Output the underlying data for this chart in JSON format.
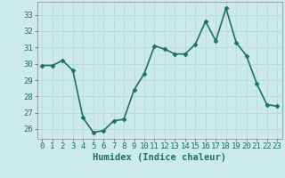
{
  "x": [
    0,
    1,
    2,
    3,
    4,
    5,
    6,
    7,
    8,
    9,
    10,
    11,
    12,
    13,
    14,
    15,
    16,
    17,
    18,
    19,
    20,
    21,
    22,
    23
  ],
  "y": [
    29.9,
    29.9,
    30.2,
    29.6,
    26.7,
    25.8,
    25.9,
    26.5,
    26.6,
    28.4,
    29.4,
    31.1,
    30.9,
    30.6,
    30.6,
    31.2,
    32.6,
    31.4,
    33.4,
    31.3,
    30.5,
    28.8,
    27.5,
    27.4
  ],
  "line_color": "#1f6f65",
  "marker": "D",
  "marker_size": 2.5,
  "bg_color": "#cceaea",
  "grid_color": "#b8d8d8",
  "xlabel": "Humidex (Indice chaleur)",
  "ylim": [
    25.4,
    33.8
  ],
  "xlim": [
    -0.5,
    23.5
  ],
  "yticks": [
    26,
    27,
    28,
    29,
    30,
    31,
    32,
    33
  ],
  "xticks": [
    0,
    1,
    2,
    3,
    4,
    5,
    6,
    7,
    8,
    9,
    10,
    11,
    12,
    13,
    14,
    15,
    16,
    17,
    18,
    19,
    20,
    21,
    22,
    23
  ],
  "tick_fontsize": 6.5,
  "xlabel_fontsize": 7.5,
  "line_width": 1.2
}
